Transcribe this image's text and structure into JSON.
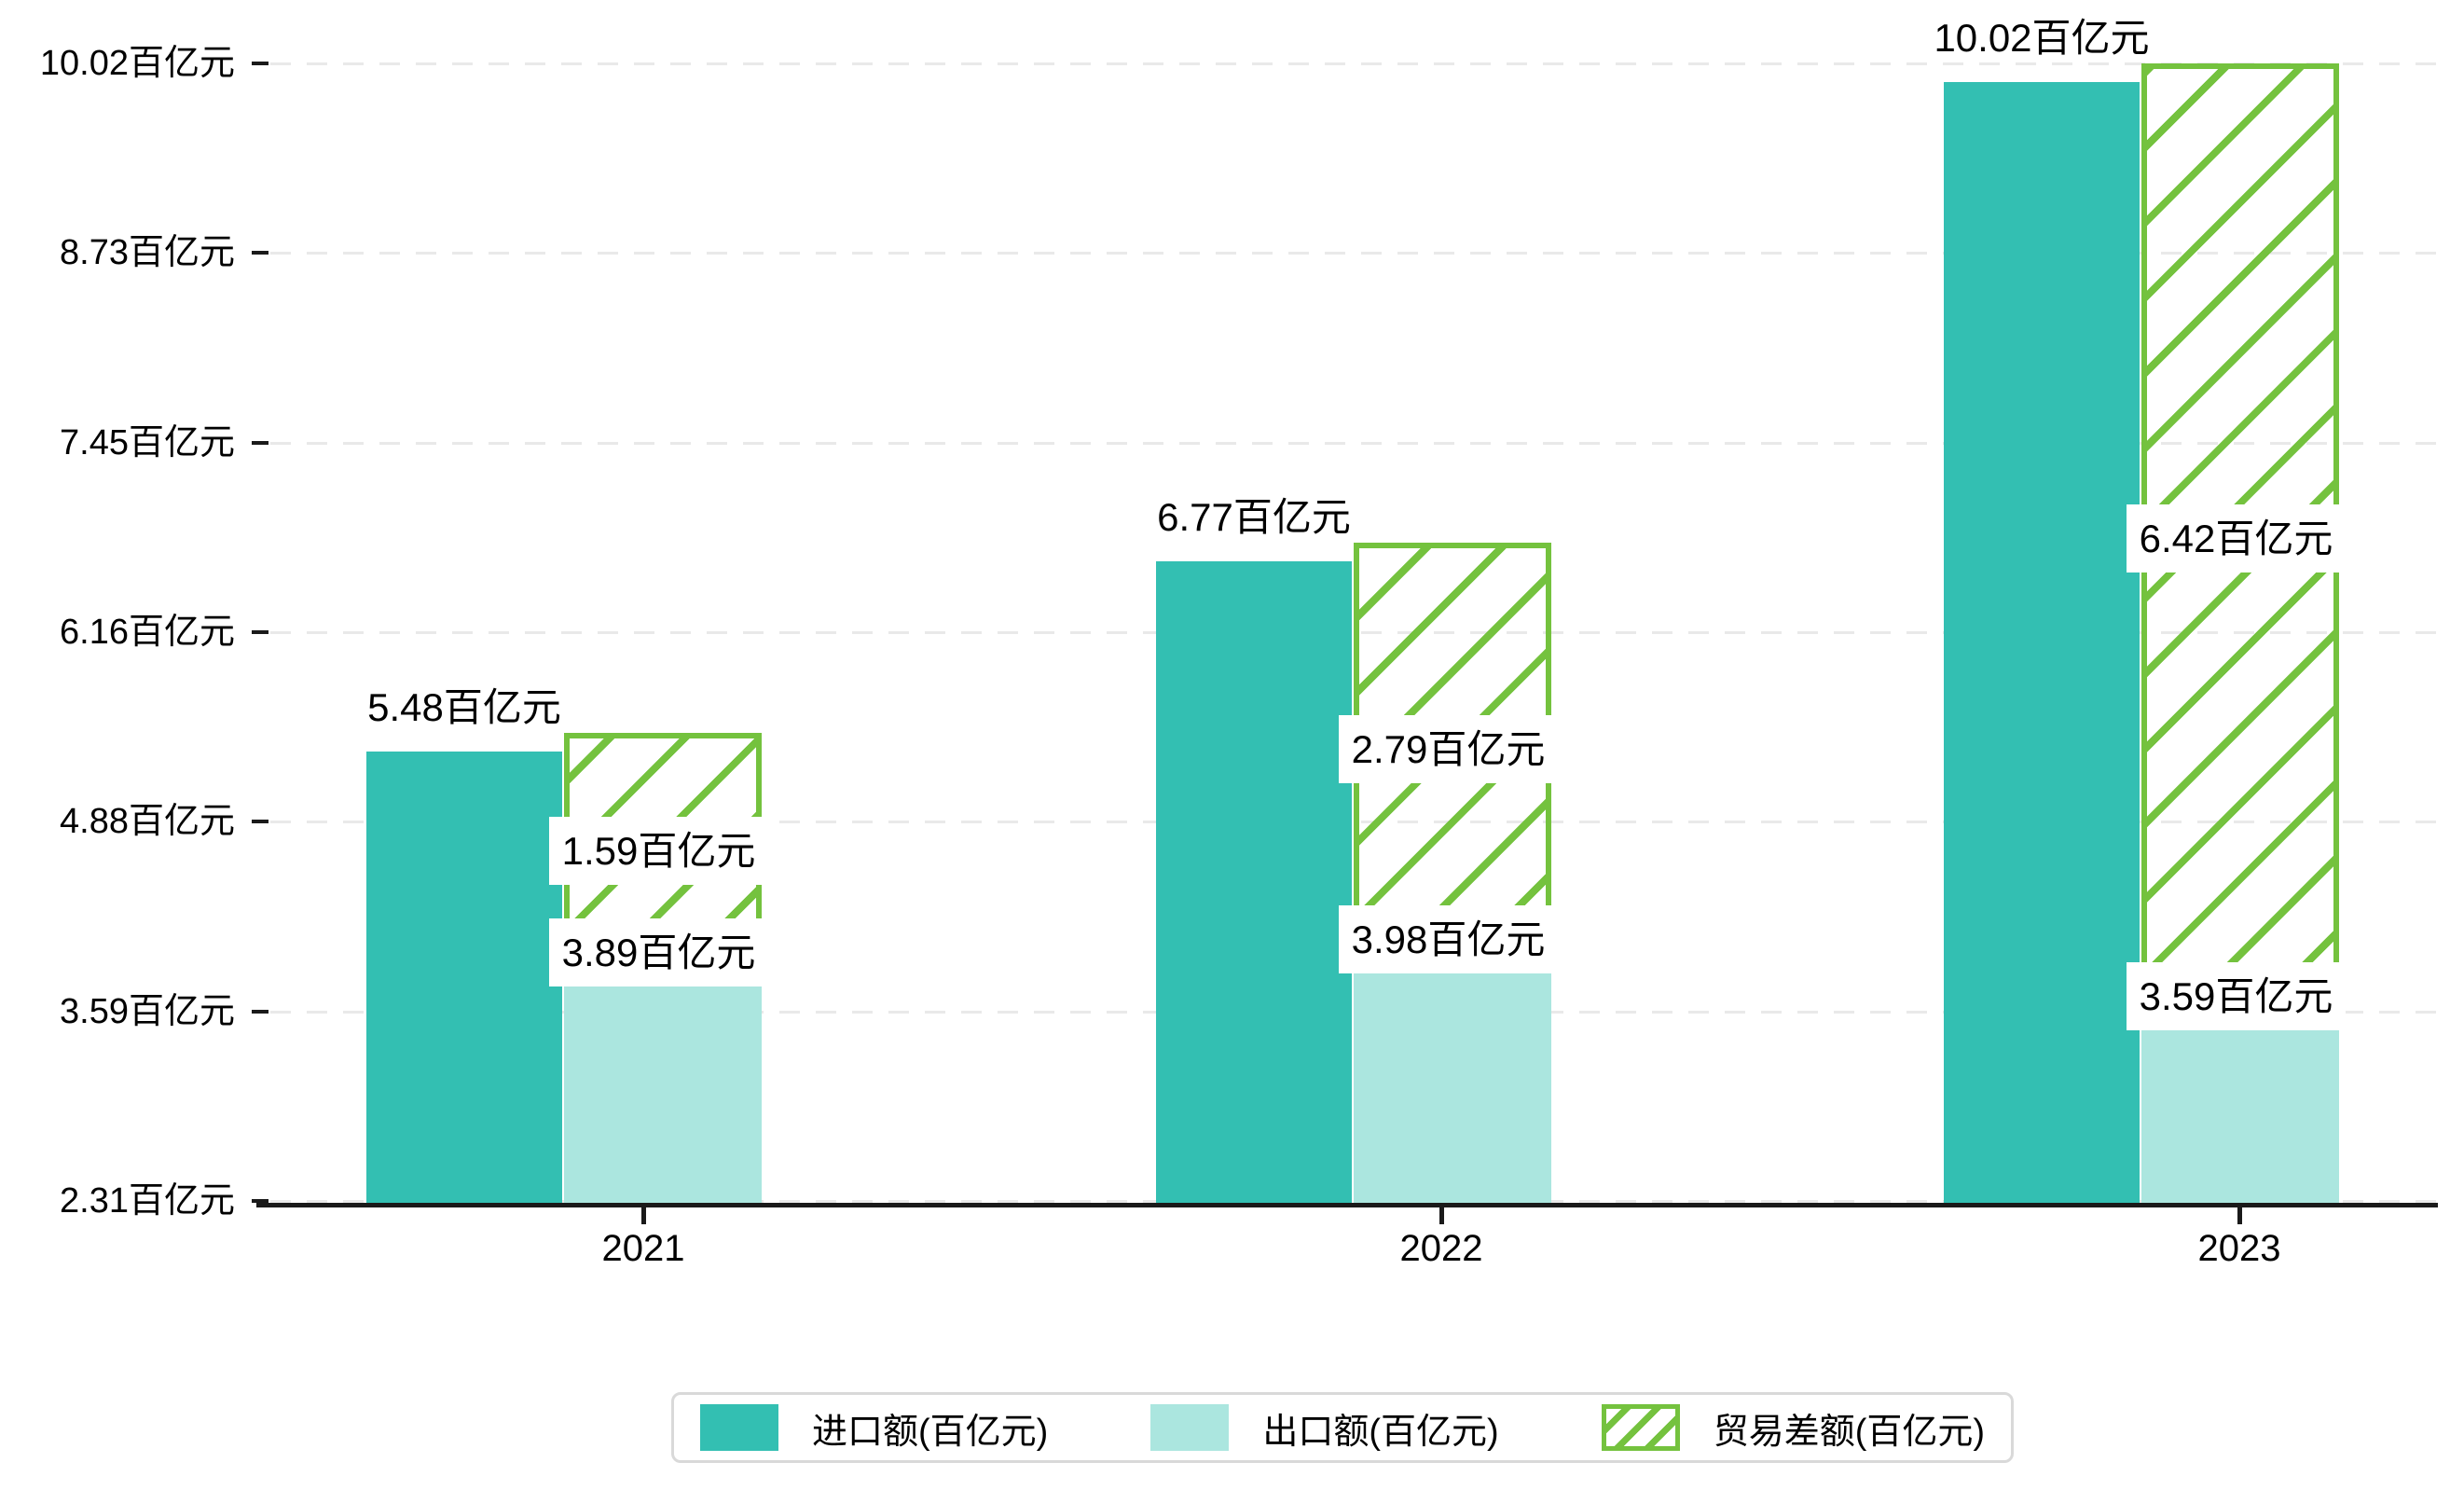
{
  "chart_data": {
    "type": "bar",
    "title": "",
    "unit": "百亿元",
    "categories": [
      "2021",
      "2022",
      "2023"
    ],
    "series": [
      {
        "name": "进口额(百亿元)",
        "style": "solid",
        "color": "#33bfb2",
        "values": [
          5.48,
          6.77,
          10.02
        ],
        "data_labels": [
          "5.48百亿元",
          "6.77百亿元",
          "10.02百亿元"
        ]
      },
      {
        "name": "出口额(百亿元)",
        "style": "solid",
        "color": "#abe6df",
        "values": [
          3.89,
          3.98,
          3.59
        ],
        "data_labels": [
          "3.89百亿元",
          "3.98百亿元",
          "3.59百亿元"
        ]
      },
      {
        "name": "贸易差额(百亿元)",
        "style": "hatched-floating",
        "color": "#74c23e",
        "values": [
          1.59,
          2.79,
          6.42
        ],
        "spans": [
          [
            3.89,
            5.48
          ],
          [
            3.98,
            6.77
          ],
          [
            3.59,
            10.02
          ]
        ],
        "data_labels": [
          "1.59百亿元",
          "2.79百亿元",
          "6.42百亿元"
        ]
      }
    ],
    "y_axis": {
      "min": 2.31,
      "max": 10.02,
      "tick_values": [
        10.02,
        8.73,
        7.45,
        6.16,
        4.88,
        3.59,
        2.31
      ],
      "tick_labels": [
        "10.02百亿元",
        "8.73百亿元",
        "7.45百亿元",
        "6.16百亿元",
        "4.88百亿元",
        "3.59百亿元",
        "2.31百亿元"
      ]
    },
    "x_axis": {
      "tick_labels": [
        "2021",
        "2022",
        "2023"
      ]
    },
    "grid": true,
    "legend_position": "bottom-center"
  },
  "legend": {
    "items": [
      {
        "label": "进口额(百亿元)",
        "swatch": "solid-teal"
      },
      {
        "label": "出口额(百亿元)",
        "swatch": "solid-light-teal"
      },
      {
        "label": "贸易差额(百亿元)",
        "swatch": "green-hatched"
      }
    ]
  },
  "colors": {
    "import_teal": "#33bfb2",
    "export_light_teal": "#abe6df",
    "balance_green": "#74c23e",
    "grid": "#e9e9e9",
    "axis": "#1a1a1a",
    "text": "#000000",
    "label_box_bg": "#ffffff",
    "legend_border": "#d9d9d9"
  }
}
